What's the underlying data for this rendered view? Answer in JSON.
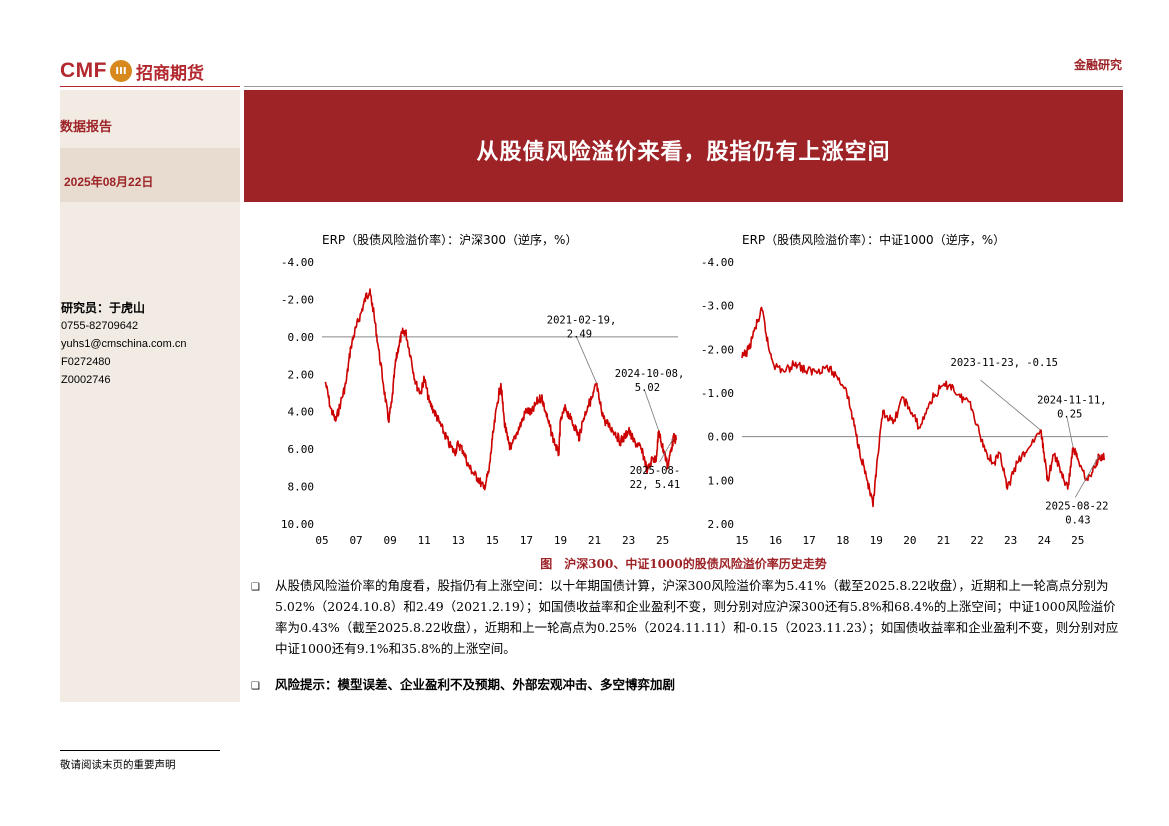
{
  "header": {
    "logo_latin": "CMF",
    "logo_chinese": "招商期货",
    "section": "金融研究"
  },
  "sidebar": {
    "report_type": "数据报告",
    "date": "2025年08月22日",
    "analyst_label": "研究员：于虎山",
    "phone": "0755-82709642",
    "email": "yuhs1@cmschina.com.cn",
    "license1": "F0272480",
    "license2": "Z0002746"
  },
  "title": "从股债风险溢价来看，股指仍有上涨空间",
  "figure_caption": "图　沪深300、中证1000的股债风险溢价率历史走势",
  "body": {
    "paragraph": "从股债风险溢价率的角度看，股指仍有上涨空间：以十年期国债计算，沪深300风险溢价率为5.41%（截至2025.8.22收盘），近期和上一轮高点分别为5.02%（2024.10.8）和2.49（2021.2.19）；如国债收益率和企业盈利不变，则分别对应沪深300还有5.8%和68.4%的上涨空间；中证1000风险溢价率为0.43%（截至2025.8.22收盘），近期和上一轮高点为0.25%（2024.11.11）和-0.15（2023.11.23）；如国债收益率和企业盈利不变，则分别对应中证1000还有9.1%和35.8%的上涨空间。",
    "risk": "风险提示：模型误差、企业盈利不及预期、外部宏观冲击、多空博弈加剧"
  },
  "footer": {
    "note": "敬请阅读末页的重要声明"
  },
  "colors": {
    "brand_red": "#9d2327",
    "line_red": "#cc0000",
    "sidebar_bg": "#f1ebe3"
  },
  "chart_data": [
    {
      "type": "line",
      "title": "ERP（股债风险溢价率）：沪深300（逆序，%）",
      "y_inverted": true,
      "ylim": [
        -4.0,
        10.0
      ],
      "yticks": [
        "-4.00",
        "-2.00",
        "0.00",
        "2.00",
        "4.00",
        "6.00",
        "8.00",
        "10.00"
      ],
      "xlim": [
        2005,
        2025.9
      ],
      "xticks": [
        "05",
        "07",
        "09",
        "11",
        "13",
        "15",
        "17",
        "19",
        "21",
        "23",
        "25"
      ],
      "reference_line": 0,
      "series": [
        {
          "x": [
            2005.2,
            2005.5,
            2005.8,
            2006.1,
            2006.4,
            2006.7,
            2007.0,
            2007.3,
            2007.6,
            2007.8,
            2008.0,
            2008.3,
            2008.6,
            2008.9,
            2009.1,
            2009.3,
            2009.5,
            2009.7,
            2009.9,
            2010.2,
            2010.5,
            2010.8,
            2011.0,
            2011.3,
            2011.6,
            2011.9,
            2012.2,
            2012.5,
            2012.8,
            2013.0,
            2013.3,
            2013.6,
            2013.9,
            2014.2,
            2014.5,
            2014.8,
            2015.0,
            2015.3,
            2015.5,
            2015.7,
            2015.9,
            2016.1,
            2016.4,
            2016.7,
            2017.0,
            2017.3,
            2017.6,
            2017.9,
            2018.0,
            2018.3,
            2018.6,
            2018.9,
            2019.0,
            2019.3,
            2019.6,
            2019.9,
            2020.1,
            2020.3,
            2020.6,
            2020.9,
            2021.1,
            2021.3,
            2021.6,
            2021.9,
            2022.2,
            2022.5,
            2022.8,
            2023.0,
            2023.3,
            2023.6,
            2023.9,
            2024.1,
            2024.4,
            2024.6,
            2024.77,
            2024.9,
            2025.1,
            2025.3,
            2025.5,
            2025.64,
            2025.8
          ],
          "y": [
            2.4,
            3.8,
            4.5,
            3.5,
            2.5,
            0.5,
            -0.5,
            -1.3,
            -2.2,
            -2.4,
            -1.5,
            0.5,
            2.5,
            4.5,
            3.5,
            1.5,
            0.5,
            -0.2,
            -0.3,
            1.0,
            2.5,
            3.0,
            2.2,
            3.5,
            4.0,
            4.6,
            5.2,
            5.8,
            6.2,
            5.7,
            6.1,
            6.9,
            7.3,
            7.6,
            8.1,
            7.2,
            5.5,
            3.5,
            2.5,
            4.5,
            5.5,
            6.0,
            5.2,
            4.6,
            3.9,
            4.1,
            3.5,
            3.2,
            3.6,
            4.6,
            5.5,
            6.3,
            4.5,
            3.8,
            4.4,
            4.9,
            5.4,
            4.5,
            3.7,
            3.2,
            2.49,
            3.5,
            4.5,
            4.8,
            5.1,
            5.6,
            5.3,
            5.0,
            5.6,
            5.8,
            6.4,
            7.2,
            6.5,
            6.6,
            5.02,
            5.6,
            6.2,
            6.9,
            6.0,
            5.41,
            5.5
          ]
        }
      ],
      "annotations": [
        {
          "x": 2021.13,
          "y": 2.49,
          "label": "2021-02-19,\n2.49"
        },
        {
          "x": 2024.77,
          "y": 5.02,
          "label": "2024-10-08,\n5.02"
        },
        {
          "x": 2025.64,
          "y": 5.41,
          "label": "2025-08-\n22, 5.41"
        }
      ]
    },
    {
      "type": "line",
      "title": "ERP（股债风险溢价率）：中证1000（逆序，%）",
      "y_inverted": true,
      "ylim": [
        -4.0,
        2.0
      ],
      "yticks": [
        "-4.00",
        "-3.00",
        "-2.00",
        "-1.00",
        "0.00",
        "1.00",
        "2.00"
      ],
      "xlim": [
        2015,
        2025.9
      ],
      "xticks": [
        "15",
        "16",
        "17",
        "18",
        "19",
        "20",
        "21",
        "22",
        "23",
        "24",
        "25"
      ],
      "reference_line": 0,
      "series": [
        {
          "x": [
            2015.0,
            2015.2,
            2015.4,
            2015.6,
            2015.8,
            2016.0,
            2016.3,
            2016.6,
            2016.9,
            2017.2,
            2017.5,
            2017.8,
            2018.1,
            2018.3,
            2018.5,
            2018.7,
            2018.9,
            2019.0,
            2019.2,
            2019.5,
            2019.8,
            2020.0,
            2020.3,
            2020.6,
            2020.9,
            2021.2,
            2021.5,
            2021.8,
            2022.1,
            2022.3,
            2022.5,
            2022.7,
            2022.9,
            2023.2,
            2023.5,
            2023.89,
            2024.0,
            2024.1,
            2024.3,
            2024.5,
            2024.7,
            2024.86,
            2025.0,
            2025.3,
            2025.5,
            2025.64,
            2025.8
          ],
          "y": [
            -1.8,
            -2.0,
            -2.5,
            -2.9,
            -2.0,
            -1.6,
            -1.5,
            -1.7,
            -1.5,
            -1.5,
            -1.6,
            -1.4,
            -1.1,
            -0.4,
            0.3,
            0.9,
            1.6,
            0.8,
            -0.6,
            -0.3,
            -0.9,
            -0.6,
            -0.2,
            -0.8,
            -1.1,
            -1.2,
            -0.9,
            -0.8,
            0.0,
            0.4,
            0.6,
            0.4,
            1.2,
            0.6,
            0.3,
            -0.15,
            0.4,
            1.0,
            0.4,
            0.8,
            1.2,
            0.25,
            0.5,
            1.0,
            0.7,
            0.43,
            0.5
          ]
        }
      ],
      "annotations": [
        {
          "x": 2023.89,
          "y": -0.15,
          "label": "2023-11-23, -0.15"
        },
        {
          "x": 2024.86,
          "y": 0.25,
          "label": "2024-11-11,\n0.25"
        },
        {
          "x": 2025.64,
          "y": 0.43,
          "label": "2025-08-22,\n0.43"
        }
      ]
    }
  ]
}
